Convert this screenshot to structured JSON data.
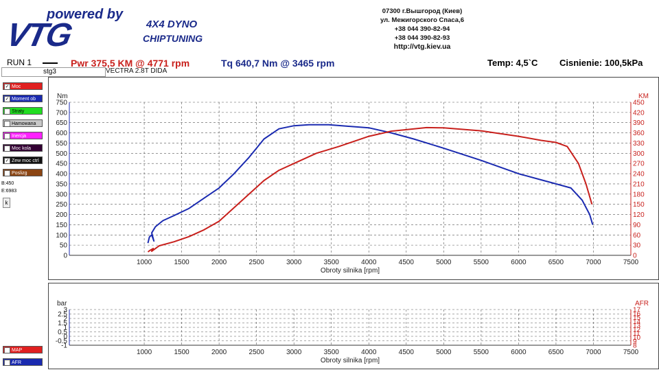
{
  "logo": {
    "powered": "powered by",
    "brand": "VTG",
    "dyno": "4X4 DYNO",
    "chip": "CHIPTUNING"
  },
  "address": {
    "line1": "07300 г.Вышгород (Киев)",
    "line2": "ул. Межигорского Спаса,6",
    "line3": "+38 044 390-82-94",
    "line4": "+38 044 390-82-93",
    "url": "http://vtg.kiev.ua"
  },
  "header": {
    "run": "RUN 1",
    "power": "Pwr  375,5 KM @ 4771 rpm",
    "torque": "Tq 640,7 Nm @ 3465 rpm",
    "temp": "Temp: 4,5`C",
    "pressure": "Cisnienie: 100,5kPa"
  },
  "file": {
    "name": "stg3",
    "car": "VECTRA 2.8T DIDA"
  },
  "legend": [
    {
      "label": "Moc",
      "color": "#e02020",
      "checked": true
    },
    {
      "label": "Moment ob",
      "color": "#1a2ab0",
      "checked": true
    },
    {
      "label": "Straty",
      "color": "#22dd22",
      "checked": false
    },
    {
      "label": "Hamowana",
      "color": "#c8c8c8",
      "checked": false
    },
    {
      "label": "Inercja",
      "color": "#ff22ff",
      "checked": false
    },
    {
      "label": "Moc kola",
      "color": "#330033",
      "checked": false
    },
    {
      "label": "Zew moc ctrl",
      "color": "#111111",
      "checked": true
    },
    {
      "label": "Poslizg",
      "color": "#8b4513",
      "checked": false
    }
  ],
  "side": {
    "b": "B:450",
    "e": "E:6983",
    "k": "k"
  },
  "bottom_legend": [
    {
      "label": "MAP",
      "color": "#e02020"
    },
    {
      "label": "AFR",
      "color": "#1a2ab0"
    }
  ],
  "chart_data": [
    {
      "type": "line",
      "xlabel": "Obroty silnika [rpm]",
      "ylabel": "Nm",
      "y2label": "KM",
      "xlim": [
        0,
        7500
      ],
      "xticks": [
        1000,
        1500,
        2000,
        2500,
        3000,
        3500,
        4000,
        4500,
        5000,
        5500,
        6000,
        6500,
        7000,
        7500
      ],
      "ylim": [
        0,
        750
      ],
      "yticks": [
        0,
        50,
        100,
        150,
        200,
        250,
        300,
        350,
        400,
        450,
        500,
        550,
        600,
        650,
        700,
        750
      ],
      "y2lim": [
        0,
        450
      ],
      "y2ticks": [
        0,
        30,
        60,
        90,
        120,
        150,
        180,
        210,
        240,
        270,
        300,
        330,
        360,
        390,
        420,
        450
      ],
      "grid": true,
      "series": [
        {
          "name": "Moment ob",
          "color": "#1a2ab0",
          "axis": "left",
          "x": [
            1050,
            1070,
            1100,
            1130,
            1100,
            1150,
            1250,
            1400,
            1600,
            1800,
            2000,
            2200,
            2400,
            2600,
            2800,
            3000,
            3200,
            3465,
            3700,
            4000,
            4300,
            4600,
            5000,
            5500,
            6000,
            6300,
            6500,
            6700,
            6850,
            6950,
            6990
          ],
          "y": [
            60,
            90,
            100,
            70,
            110,
            140,
            170,
            195,
            230,
            280,
            330,
            400,
            480,
            570,
            620,
            635,
            640,
            640,
            633,
            625,
            600,
            570,
            525,
            465,
            400,
            370,
            350,
            330,
            270,
            200,
            150
          ]
        },
        {
          "name": "Moc",
          "color": "#c8201c",
          "axis": "right",
          "x": [
            1050,
            1080,
            1120,
            1100,
            1200,
            1400,
            1600,
            1800,
            2000,
            2200,
            2400,
            2600,
            2800,
            3000,
            3300,
            3600,
            4000,
            4300,
            4771,
            5000,
            5500,
            6000,
            6300,
            6500,
            6650,
            6800,
            6900,
            6980
          ],
          "y": [
            10,
            15,
            20,
            12,
            28,
            40,
            55,
            75,
            100,
            140,
            180,
            220,
            250,
            270,
            300,
            320,
            350,
            365,
            375.5,
            375,
            366,
            350,
            338,
            332,
            320,
            270,
            210,
            150
          ]
        }
      ]
    },
    {
      "type": "line",
      "xlabel": "Obroty silnika [rpm]",
      "ylabel": "bar",
      "y2label": "AFR",
      "xlim": [
        0,
        7500
      ],
      "xticks": [
        1000,
        1500,
        2000,
        2500,
        3000,
        3500,
        4000,
        4500,
        5000,
        5500,
        6000,
        6500,
        7000,
        7500
      ],
      "ylim": [
        -1.0,
        3.0
      ],
      "yticks": [
        -1.0,
        -0.5,
        0.0,
        0.5,
        1.0,
        1.5,
        2.0,
        2.5,
        3.0
      ],
      "y2lim": [
        8,
        17
      ],
      "y2ticks": [
        8,
        9,
        10,
        11,
        12,
        13,
        14,
        15,
        16,
        17
      ],
      "grid": true,
      "series": []
    }
  ]
}
